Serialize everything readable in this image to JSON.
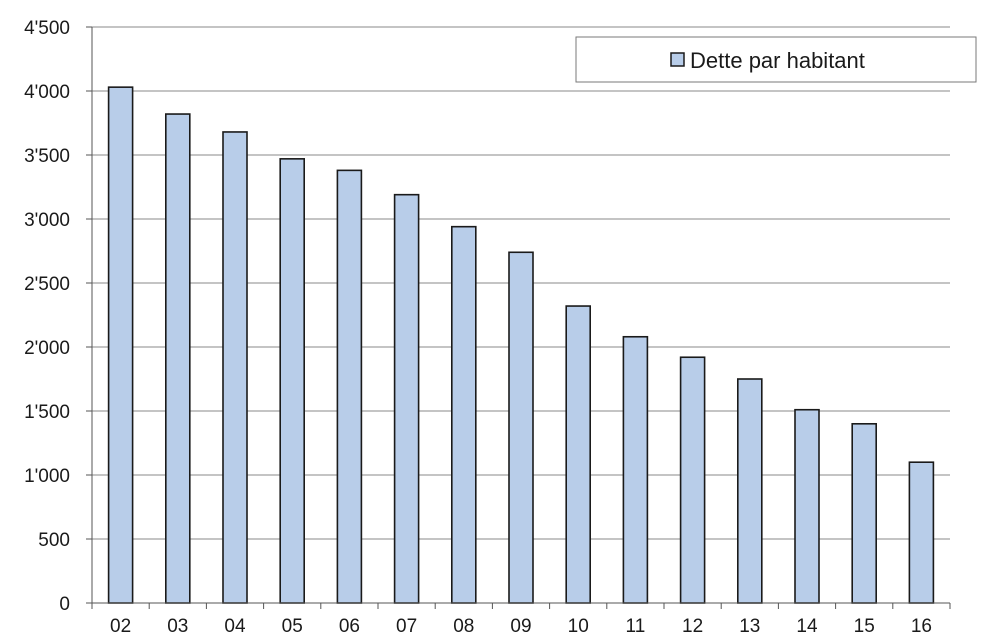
{
  "chart_data": {
    "type": "bar",
    "title": "",
    "xlabel": "",
    "ylabel": "",
    "categories": [
      "02",
      "03",
      "04",
      "05",
      "06",
      "07",
      "08",
      "09",
      "10",
      "11",
      "12",
      "13",
      "14",
      "15",
      "16"
    ],
    "series": [
      {
        "name": "Dette par habitant",
        "values": [
          4030,
          3820,
          3680,
          3470,
          3380,
          3190,
          2940,
          2740,
          2320,
          2080,
          1920,
          1750,
          1510,
          1400,
          1100
        ]
      }
    ],
    "ylim": [
      0,
      4500
    ],
    "yticks": [
      0,
      500,
      1000,
      1500,
      2000,
      2500,
      3000,
      3500,
      4000,
      4500
    ],
    "ytick_labels": [
      "0",
      "500",
      "1'000",
      "1'500",
      "2'000",
      "2'500",
      "3'000",
      "3'500",
      "4'000",
      "4'500"
    ],
    "grid": true,
    "legend_position": "top-right",
    "bar_color": "#b8cde9",
    "bar_edge_color": "#1a1a1a",
    "grid_color": "#8a8a8a"
  }
}
